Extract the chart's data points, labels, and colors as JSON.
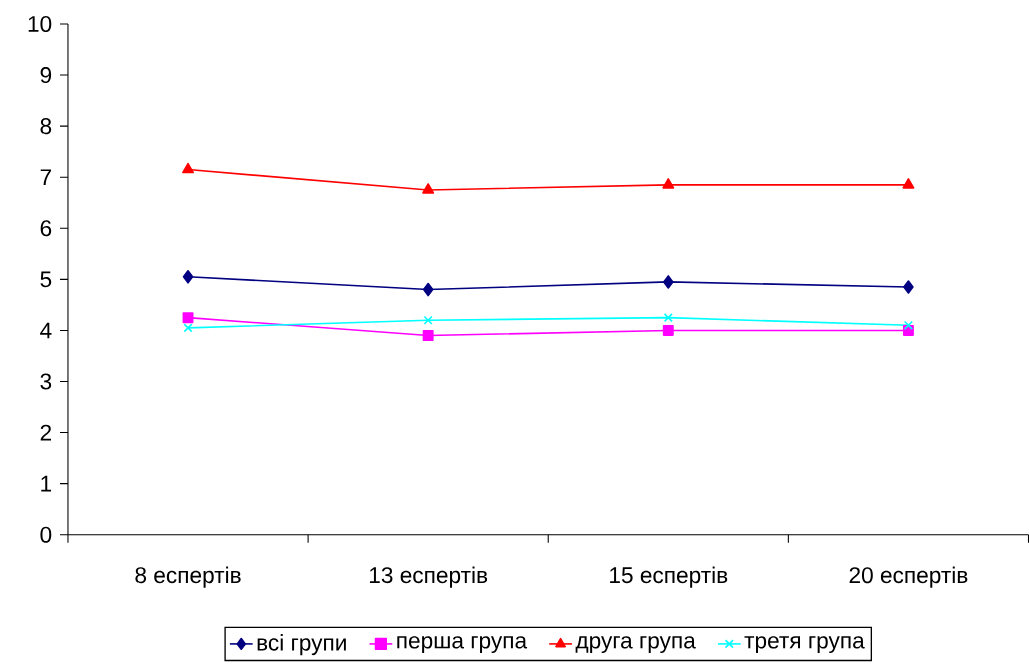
{
  "chart_data": {
    "type": "line",
    "categories": [
      "8 еспертів",
      "13 еспертів",
      "15 еспертів",
      "20 еспертів"
    ],
    "series": [
      {
        "name": "всі групи",
        "color": "#000080",
        "marker": "diamond",
        "values": [
          5.05,
          4.8,
          4.95,
          4.85
        ]
      },
      {
        "name": "перша група",
        "color": "#ff00ff",
        "marker": "square",
        "values": [
          4.25,
          3.9,
          4.0,
          4.0
        ]
      },
      {
        "name": "друга група",
        "color": "#ff0000",
        "marker": "triangle",
        "values": [
          7.15,
          6.75,
          6.85,
          6.85
        ]
      },
      {
        "name": "третя група",
        "color": "#00ffff",
        "marker": "cross",
        "values": [
          4.05,
          4.2,
          4.25,
          4.1
        ]
      }
    ],
    "ylim": [
      0,
      10
    ],
    "yticks": [
      0,
      1,
      2,
      3,
      4,
      5,
      6,
      7,
      8,
      9,
      10
    ],
    "grid": false,
    "legend": "bottom",
    "line_style": "solid"
  }
}
